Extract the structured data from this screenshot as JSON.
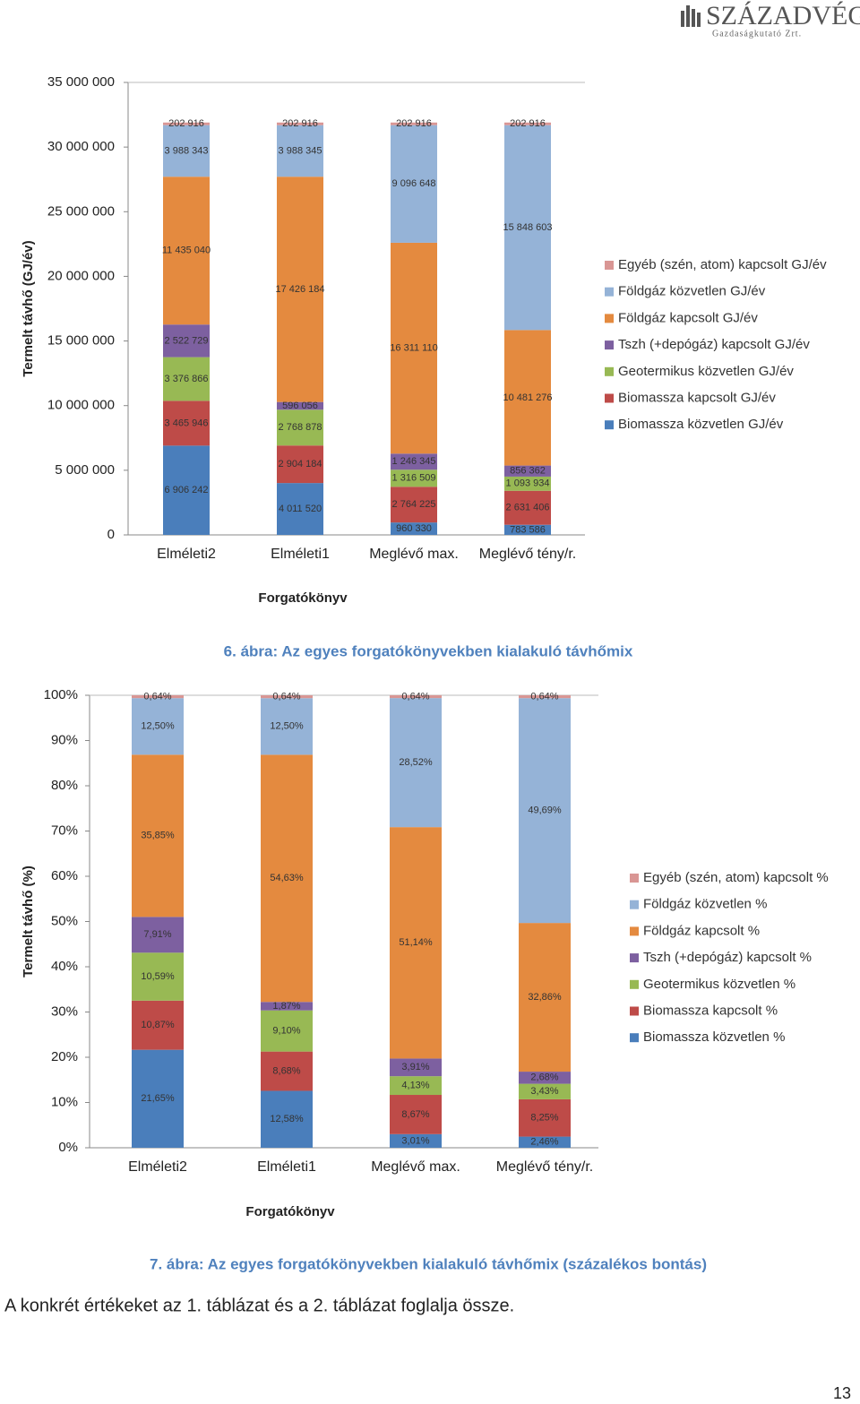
{
  "header": {
    "logo_name": "SZÁZADVÉG",
    "logo_sub": "Gazdaságkutató Zrt."
  },
  "chart_data": [
    {
      "type": "stacked-bar",
      "y_label": "Termelt távhő (GJ/év)",
      "x_label": "Forgatókönyv",
      "categories": [
        "Elméleti2",
        "Elméleti1",
        "Meglévő max.",
        "Meglévő tény/r."
      ],
      "ylim": [
        0,
        35000000
      ],
      "yticks": [
        0,
        {
          "value": 5000000,
          "label": "5 000 000"
        },
        {
          "value": 10000000,
          "label": "10 000 000"
        },
        {
          "value": 15000000,
          "label": "15 000 000"
        },
        {
          "value": 20000000,
          "label": "20 000 000"
        },
        {
          "value": 25000000,
          "label": "25 000 000"
        },
        {
          "value": 30000000,
          "label": "30 000 000"
        },
        {
          "value": 35000000,
          "label": "35 000 000"
        }
      ],
      "grid": false,
      "legend": "right",
      "series": [
        {
          "name": "Biomassza közvetlen GJ/év",
          "color": "#4a7ebb",
          "values": [
            6906242,
            4011520,
            960330,
            783586
          ],
          "value_labels": [
            "6 906 242",
            "4 011 520",
            "960 330",
            "783 586"
          ]
        },
        {
          "name": "Biomassza kapcsolt GJ/év",
          "color": "#be4b48",
          "values": [
            3465946,
            2904184,
            2764225,
            2631406
          ],
          "value_labels": [
            "3 465 946",
            "2 904 184",
            "2 764 225",
            "2 631 406"
          ]
        },
        {
          "name": "Geotermikus közvetlen GJ/év",
          "color": "#98b954",
          "values": [
            3376866,
            2768878,
            1316509,
            1093934
          ],
          "value_labels": [
            "3 376 866",
            "2 768 878",
            "1 316 509",
            "1 093 934"
          ]
        },
        {
          "name": "Tszh (+depógáz) kapcsolt GJ/év",
          "color": "#7d60a0",
          "values": [
            2522729,
            596056,
            1246345,
            856362
          ],
          "value_labels": [
            "2 522 729",
            "596 056",
            "1 246 345",
            "856 362"
          ]
        },
        {
          "name": "Földgáz kapcsolt GJ/év",
          "color": "#e48a3f",
          "values": [
            11435040,
            17426184,
            16311110,
            10481276
          ],
          "value_labels": [
            "11 435 040",
            "17 426 184",
            "16 311 110",
            "10 481 276"
          ]
        },
        {
          "name": "Földgáz közvetlen GJ/év",
          "color": "#95b3d7",
          "values": [
            3988343,
            3988345,
            9096648,
            15848603
          ],
          "value_labels": [
            "3 988 343",
            "3 988 345",
            "9 096 648",
            "15 848 603"
          ]
        },
        {
          "name": "Egyéb (szén, atom) kapcsolt GJ/év",
          "color": "#d99694",
          "values": [
            202916,
            202916,
            202916,
            202916
          ],
          "value_labels": [
            "202 916",
            "202 916",
            "202 916",
            "202 916"
          ]
        }
      ]
    },
    {
      "type": "stacked-bar",
      "y_label": "Termelt távhő (%)",
      "x_label": "Forgatókönyv",
      "categories": [
        "Elméleti2",
        "Elméleti1",
        "Meglévő max.",
        "Meglévő tény/r."
      ],
      "ylim": [
        0,
        100
      ],
      "yticks": [
        {
          "value": 0,
          "label": "0%"
        },
        {
          "value": 10,
          "label": "10%"
        },
        {
          "value": 20,
          "label": "20%"
        },
        {
          "value": 30,
          "label": "30%"
        },
        {
          "value": 40,
          "label": "40%"
        },
        {
          "value": 50,
          "label": "50%"
        },
        {
          "value": 60,
          "label": "60%"
        },
        {
          "value": 70,
          "label": "70%"
        },
        {
          "value": 80,
          "label": "80%"
        },
        {
          "value": 90,
          "label": "90%"
        },
        {
          "value": 100,
          "label": "100%"
        }
      ],
      "grid": false,
      "legend": "right",
      "series": [
        {
          "name": "Biomassza közvetlen %",
          "color": "#4a7ebb",
          "values": [
            21.65,
            12.58,
            3.01,
            2.46
          ],
          "value_labels": [
            "21,65%",
            "12,58%",
            "3,01%",
            "2,46%"
          ]
        },
        {
          "name": "Biomassza kapcsolt %",
          "color": "#be4b48",
          "values": [
            10.87,
            8.68,
            8.67,
            8.25
          ],
          "value_labels": [
            "10,87%",
            "8,68%",
            "8,67%",
            "8,25%"
          ]
        },
        {
          "name": "Geotermikus közvetlen %",
          "color": "#98b954",
          "values": [
            10.59,
            9.1,
            4.13,
            3.43
          ],
          "value_labels": [
            "10,59%",
            "9,10%",
            "4,13%",
            "3,43%"
          ]
        },
        {
          "name": "Tszh (+depógáz) kapcsolt %",
          "color": "#7d60a0",
          "values": [
            7.91,
            1.87,
            3.91,
            2.68
          ],
          "value_labels": [
            "7,91%",
            "1,87%",
            "3,91%",
            "2,68%"
          ]
        },
        {
          "name": "Földgáz kapcsolt %",
          "color": "#e48a3f",
          "values": [
            35.85,
            54.63,
            51.14,
            32.86
          ],
          "value_labels": [
            "35,85%",
            "54,63%",
            "51,14%",
            "32,86%"
          ]
        },
        {
          "name": "Földgáz közvetlen %",
          "color": "#95b3d7",
          "values": [
            12.5,
            12.5,
            28.52,
            49.69
          ],
          "value_labels": [
            "12,50%",
            "12,50%",
            "28,52%",
            "49,69%"
          ]
        },
        {
          "name": "Egyéb (szén, atom) kapcsolt %",
          "color": "#d99694",
          "values": [
            0.64,
            0.64,
            0.64,
            0.64
          ],
          "value_labels": [
            "0,64%",
            "0,64%",
            "0,64%",
            "0,64%"
          ]
        }
      ]
    }
  ],
  "captions": [
    "6. ábra: Az egyes forgatókönyvekben kialakuló távhőmix",
    "7. ábra: Az egyes forgatókönyvekben kialakuló távhőmix (százalékos bontás)"
  ],
  "body_text": "A konkrét értékeket az 1. táblázat és a 2. táblázat foglalja össze.",
  "page_number": 13
}
